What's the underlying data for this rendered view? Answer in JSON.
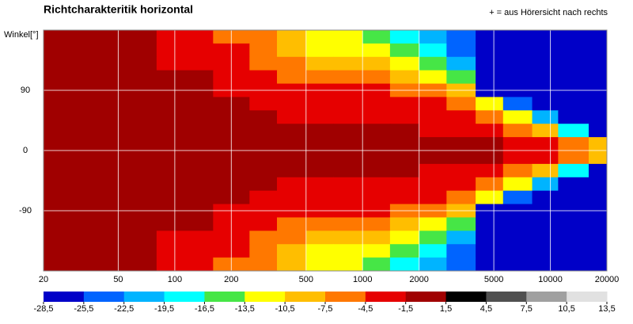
{
  "chart_data": {
    "type": "heatmap",
    "title": "Richtcharakteritik horizontal",
    "annotation": "+ = aus Hörersicht nach rechts",
    "ylabel": "Winkel[°]",
    "xscale": "log",
    "xlim": [
      20,
      20000
    ],
    "xticks": [
      20,
      50,
      100,
      200,
      500,
      1000,
      2000,
      5000,
      10000,
      20000
    ],
    "ylim": [
      -180,
      180
    ],
    "yticks": [
      90,
      0,
      -90
    ],
    "grid": true,
    "x_edges": [
      20,
      40,
      80,
      160,
      250,
      350,
      500,
      700,
      1000,
      1400,
      2000,
      2800,
      4000,
      5600,
      8000,
      11000,
      16000,
      20000
    ],
    "y_edges": [
      180,
      160,
      140,
      120,
      100,
      80,
      60,
      40,
      20,
      0,
      -20,
      -40,
      -60,
      -80,
      -100,
      -120,
      -140,
      -160,
      -180
    ],
    "z": [
      [
        0,
        0,
        -3,
        -6,
        -6,
        -9,
        -12,
        -12,
        -15,
        -18,
        -21,
        -24,
        -27,
        -27,
        -27,
        -27,
        -27
      ],
      [
        0,
        0,
        -3,
        -3,
        -6,
        -9,
        -12,
        -12,
        -12,
        -15,
        -18,
        -24,
        -27,
        -27,
        -27,
        -27,
        -27
      ],
      [
        0,
        0,
        -3,
        -3,
        -6,
        -6,
        -9,
        -9,
        -9,
        -12,
        -15,
        -21,
        -27,
        -27,
        -27,
        -27,
        -27
      ],
      [
        0,
        0,
        0,
        -3,
        -3,
        -6,
        -6,
        -6,
        -6,
        -9,
        -12,
        -15,
        -27,
        -27,
        -27,
        -27,
        -27
      ],
      [
        0,
        0,
        0,
        -3,
        -3,
        -3,
        -3,
        -3,
        -3,
        -6,
        -6,
        -9,
        -27,
        -27,
        -27,
        -27,
        -27
      ],
      [
        0,
        0,
        0,
        0,
        -3,
        -3,
        -3,
        -3,
        -3,
        -3,
        -3,
        -6,
        -12,
        -24,
        -27,
        -27,
        -27
      ],
      [
        0,
        0,
        0,
        0,
        0,
        -3,
        -3,
        -3,
        -3,
        -3,
        -3,
        -3,
        -6,
        -12,
        -21,
        -27,
        -27
      ],
      [
        0,
        0,
        0,
        0,
        0,
        0,
        0,
        0,
        0,
        0,
        -3,
        -3,
        -3,
        -6,
        -9,
        -18,
        -27
      ],
      [
        0,
        0,
        0,
        0,
        0,
        0,
        0,
        0,
        0,
        0,
        0,
        0,
        0,
        -3,
        -3,
        -6,
        -9
      ],
      [
        0,
        0,
        0,
        0,
        0,
        0,
        0,
        0,
        0,
        0,
        0,
        0,
        0,
        -3,
        -3,
        -6,
        -9
      ],
      [
        0,
        0,
        0,
        0,
        0,
        0,
        0,
        0,
        0,
        0,
        -3,
        -3,
        -3,
        -6,
        -9,
        -18,
        -27
      ],
      [
        0,
        0,
        0,
        0,
        0,
        -3,
        -3,
        -3,
        -3,
        -3,
        -3,
        -3,
        -6,
        -12,
        -21,
        -27,
        -27
      ],
      [
        0,
        0,
        0,
        0,
        -3,
        -3,
        -3,
        -3,
        -3,
        -3,
        -3,
        -6,
        -12,
        -24,
        -27,
        -27,
        -27
      ],
      [
        0,
        0,
        0,
        -3,
        -3,
        -3,
        -3,
        -3,
        -3,
        -6,
        -6,
        -9,
        -27,
        -27,
        -27,
        -27,
        -27
      ],
      [
        0,
        0,
        0,
        -3,
        -3,
        -6,
        -6,
        -6,
        -6,
        -9,
        -12,
        -15,
        -27,
        -27,
        -27,
        -27,
        -27
      ],
      [
        0,
        0,
        -3,
        -3,
        -6,
        -6,
        -9,
        -9,
        -9,
        -12,
        -15,
        -21,
        -27,
        -27,
        -27,
        -27,
        -27
      ],
      [
        0,
        0,
        -3,
        -3,
        -6,
        -9,
        -12,
        -12,
        -12,
        -15,
        -18,
        -24,
        -27,
        -27,
        -27,
        -27,
        -27
      ],
      [
        0,
        0,
        -3,
        -6,
        -6,
        -9,
        -12,
        -12,
        -15,
        -18,
        -21,
        -24,
        -27,
        -27,
        -27,
        -27,
        -27
      ]
    ],
    "colorbar": {
      "ticks": [
        {
          "value": -28.5,
          "label": "-28,5"
        },
        {
          "value": -25.5,
          "label": "-25,5"
        },
        {
          "value": -22.5,
          "label": "-22,5"
        },
        {
          "value": -19.5,
          "label": "-19,5"
        },
        {
          "value": -16.5,
          "label": "-16,5"
        },
        {
          "value": -13.5,
          "label": "-13,5"
        },
        {
          "value": -10.5,
          "label": "-10,5"
        },
        {
          "value": -7.5,
          "label": "-7,5"
        },
        {
          "value": -4.5,
          "label": "-4,5"
        },
        {
          "value": -1.5,
          "label": "-1,5"
        },
        {
          "value": 1.5,
          "label": "1,5"
        },
        {
          "value": 4.5,
          "label": "4,5"
        },
        {
          "value": 7.5,
          "label": "7,5"
        },
        {
          "value": 10.5,
          "label": "10,5"
        },
        {
          "value": 13.5,
          "label": "13,5"
        }
      ],
      "colors": [
        "#0000c8",
        "#0064ff",
        "#00b4ff",
        "#00ffff",
        "#46e646",
        "#ffff00",
        "#ffbe00",
        "#ff7800",
        "#e60000",
        "#a00000",
        "#000000",
        "#505050",
        "#a0a0a0",
        "#e1e1e1"
      ]
    }
  }
}
